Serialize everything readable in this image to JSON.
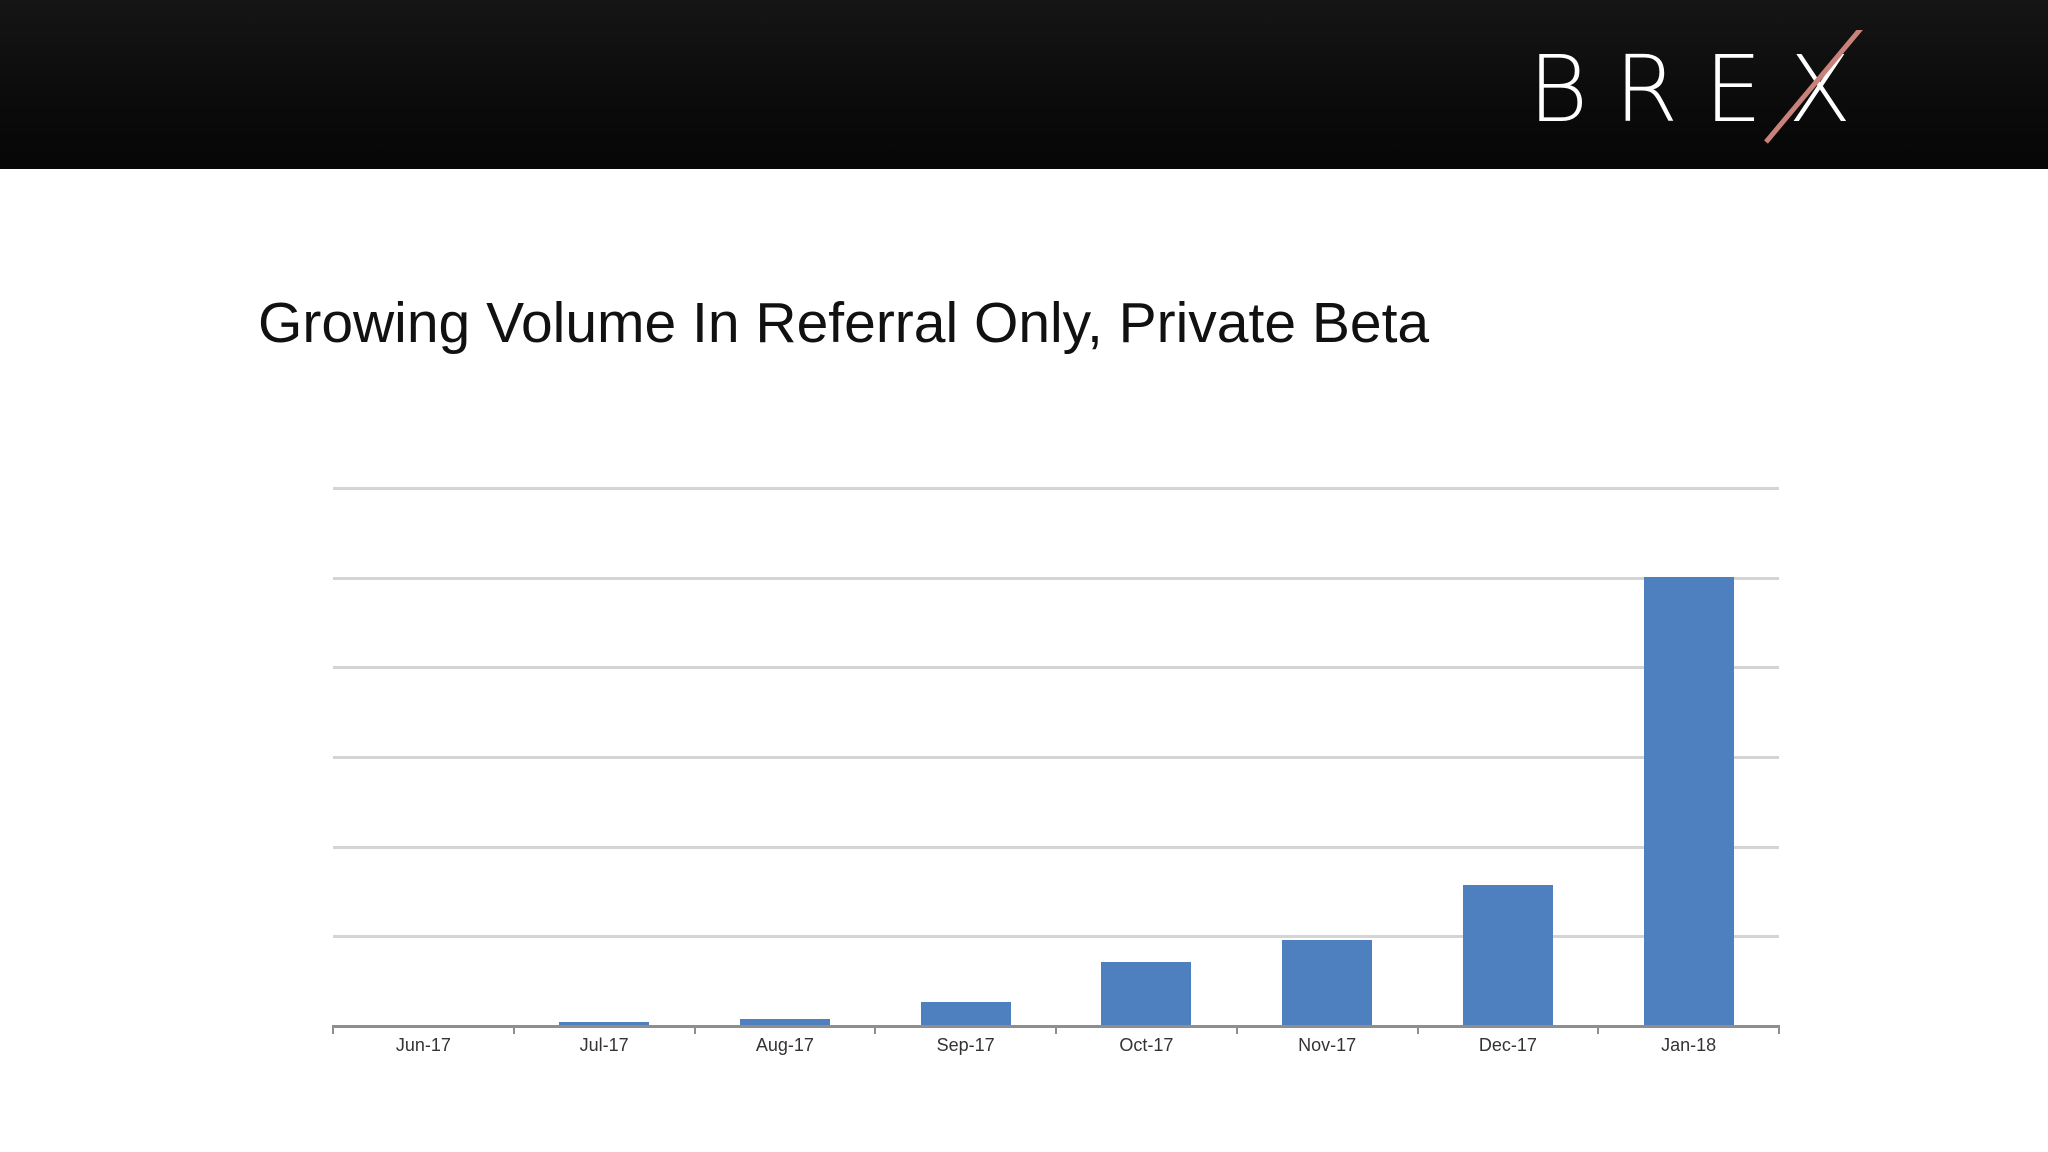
{
  "header": {
    "logo_text": "BREX",
    "logo_accent_color": "#c9827a"
  },
  "slide": {
    "title": "Growing Volume In Referral Only, Private Beta"
  },
  "chart_data": {
    "type": "bar",
    "title": "Growing Volume In Referral Only, Private Beta",
    "xlabel": "",
    "ylabel": "",
    "categories": [
      "Jun-17",
      "Jul-17",
      "Aug-17",
      "Sep-17",
      "Oct-17",
      "Nov-17",
      "Dec-17",
      "Jan-18"
    ],
    "values": [
      0,
      0.03,
      0.07,
      0.26,
      0.7,
      0.95,
      1.56,
      5.0
    ],
    "ylim": [
      0,
      6
    ],
    "y_tick_labels_visible": false,
    "grid": true,
    "legend": null,
    "bar_color": "#4e7fbf",
    "note": "Y-axis unlabeled; values in relative gridline units"
  }
}
